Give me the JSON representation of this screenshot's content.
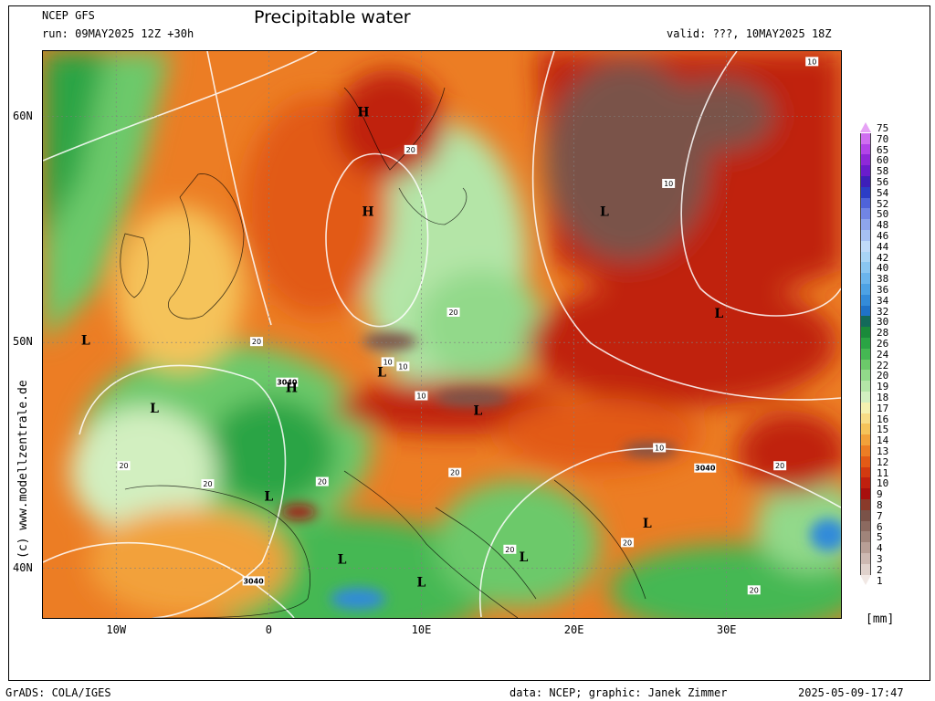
{
  "header": {
    "model": "NCEP GFS",
    "run": "run: 09MAY2025 12Z +30h",
    "title": "Precipitable water",
    "valid": "valid: ???, 10MAY2025 18Z"
  },
  "map": {
    "lat_labels": [
      {
        "label": "60N",
        "lat": 60
      },
      {
        "label": "50N",
        "lat": 50
      },
      {
        "label": "40N",
        "lat": 40
      }
    ],
    "lon_labels": [
      {
        "label": "10W",
        "lon": -10
      },
      {
        "label": "0",
        "lon": 0
      },
      {
        "label": "10E",
        "lon": 10
      },
      {
        "label": "20E",
        "lon": 20
      },
      {
        "label": "30E",
        "lon": 30
      }
    ],
    "extent": {
      "lon_min": -14.8,
      "lon_max": 37.5,
      "lat_min": 37.8,
      "lat_max": 62.9
    },
    "pressure_systems": [
      {
        "symbol": "H",
        "lon": 6.2,
        "lat": 60.0
      },
      {
        "symbol": "H",
        "lon": 6.5,
        "lat": 55.6
      },
      {
        "symbol": "L",
        "lon": -12.0,
        "lat": 49.9
      },
      {
        "symbol": "L",
        "lon": 7.4,
        "lat": 48.5
      },
      {
        "symbol": "H",
        "lon": 1.5,
        "lat": 47.8
      },
      {
        "symbol": "L",
        "lon": -7.5,
        "lat": 46.9
      },
      {
        "symbol": "L",
        "lon": 13.7,
        "lat": 46.8
      },
      {
        "symbol": "L",
        "lon": 22.0,
        "lat": 55.6
      },
      {
        "symbol": "L",
        "lon": 29.5,
        "lat": 51.1
      },
      {
        "symbol": "L",
        "lon": 0.0,
        "lat": 43.0
      },
      {
        "symbol": "L",
        "lon": 24.8,
        "lat": 41.8
      },
      {
        "symbol": "L",
        "lon": 4.8,
        "lat": 40.2
      },
      {
        "symbol": "L",
        "lon": 10.0,
        "lat": 39.2
      },
      {
        "symbol": "L",
        "lon": 16.7,
        "lat": 40.3
      }
    ],
    "contour_labels": [
      {
        "text": "3040",
        "lon": 1.2,
        "lat": 48.2
      },
      {
        "text": "3040",
        "lon": 28.6,
        "lat": 44.4
      },
      {
        "text": "3040",
        "lon": -1.0,
        "lat": 39.4
      },
      {
        "text": "20",
        "lon": -9.5,
        "lat": 44.5
      },
      {
        "text": "20",
        "lon": -4.0,
        "lat": 43.7
      },
      {
        "text": "20",
        "lon": 3.5,
        "lat": 43.8
      },
      {
        "text": "20",
        "lon": -0.8,
        "lat": 50.0
      },
      {
        "text": "20",
        "lon": 9.3,
        "lat": 58.5
      },
      {
        "text": "20",
        "lon": 12.1,
        "lat": 51.3
      },
      {
        "text": "20",
        "lon": 12.2,
        "lat": 44.2
      },
      {
        "text": "20",
        "lon": 15.8,
        "lat": 40.8
      },
      {
        "text": "20",
        "lon": 23.5,
        "lat": 41.1
      },
      {
        "text": "20",
        "lon": 33.5,
        "lat": 44.5
      },
      {
        "text": "20",
        "lon": 31.8,
        "lat": 39.0
      },
      {
        "text": "10",
        "lon": 7.8,
        "lat": 49.1
      },
      {
        "text": "10",
        "lon": 8.8,
        "lat": 48.9
      },
      {
        "text": "10",
        "lon": 10.0,
        "lat": 47.6
      },
      {
        "text": "10",
        "lon": 25.6,
        "lat": 45.3
      },
      {
        "text": "10",
        "lon": 26.2,
        "lat": 57.0
      },
      {
        "text": "10",
        "lon": 35.6,
        "lat": 62.4
      }
    ]
  },
  "legend": {
    "unit": "[mm]",
    "levels": [
      {
        "label": "75",
        "color": "#e6a3f5"
      },
      {
        "label": "70",
        "color": "#cf6ef0"
      },
      {
        "label": "65",
        "color": "#b244e8"
      },
      {
        "label": "60",
        "color": "#8e28d8"
      },
      {
        "label": "58",
        "color": "#6a1ccc"
      },
      {
        "label": "56",
        "color": "#3d1fb9"
      },
      {
        "label": "54",
        "color": "#2c3dc6"
      },
      {
        "label": "52",
        "color": "#4f63d9"
      },
      {
        "label": "50",
        "color": "#7185e4"
      },
      {
        "label": "48",
        "color": "#8ea5ec"
      },
      {
        "label": "46",
        "color": "#a6c0f2"
      },
      {
        "label": "44",
        "color": "#c0daf8"
      },
      {
        "label": "42",
        "color": "#a9d4f5"
      },
      {
        "label": "40",
        "color": "#8ac6f1"
      },
      {
        "label": "38",
        "color": "#6bb5ec"
      },
      {
        "label": "36",
        "color": "#4da2e4"
      },
      {
        "label": "34",
        "color": "#338bd9"
      },
      {
        "label": "32",
        "color": "#1f72c8"
      },
      {
        "label": "30",
        "color": "#136a5a"
      },
      {
        "label": "28",
        "color": "#1a8a3a"
      },
      {
        "label": "26",
        "color": "#2aa444"
      },
      {
        "label": "24",
        "color": "#45b853"
      },
      {
        "label": "22",
        "color": "#6cc96a"
      },
      {
        "label": "20",
        "color": "#92d98a"
      },
      {
        "label": "19",
        "color": "#b4e5a7"
      },
      {
        "label": "18",
        "color": "#d2efc0"
      },
      {
        "label": "17",
        "color": "#f4f1b0"
      },
      {
        "label": "16",
        "color": "#f7dc86"
      },
      {
        "label": "15",
        "color": "#f5c35a"
      },
      {
        "label": "14",
        "color": "#f2a13a"
      },
      {
        "label": "13",
        "color": "#ec7d24"
      },
      {
        "label": "12",
        "color": "#e25a16"
      },
      {
        "label": "11",
        "color": "#d23a10"
      },
      {
        "label": "10",
        "color": "#c0200e"
      },
      {
        "label": "9",
        "color": "#a80f0d"
      },
      {
        "label": "8",
        "color": "#8a3a2a"
      },
      {
        "label": "7",
        "color": "#7a5248"
      },
      {
        "label": "6",
        "color": "#8c6a60"
      },
      {
        "label": "5",
        "color": "#a0847a"
      },
      {
        "label": "4",
        "color": "#b89f96"
      },
      {
        "label": "3",
        "color": "#cdb9b2"
      },
      {
        "label": "2",
        "color": "#e0d2cc"
      },
      {
        "label": "1",
        "color": "#f1e8e4"
      }
    ]
  },
  "footer": {
    "software": "GrADS: COLA/IGES",
    "data": "data: NCEP; graphic: Janek Zimmer",
    "timestamp": "2025-05-09-17:47"
  },
  "credit": "(c) www.modellzentrale.de"
}
